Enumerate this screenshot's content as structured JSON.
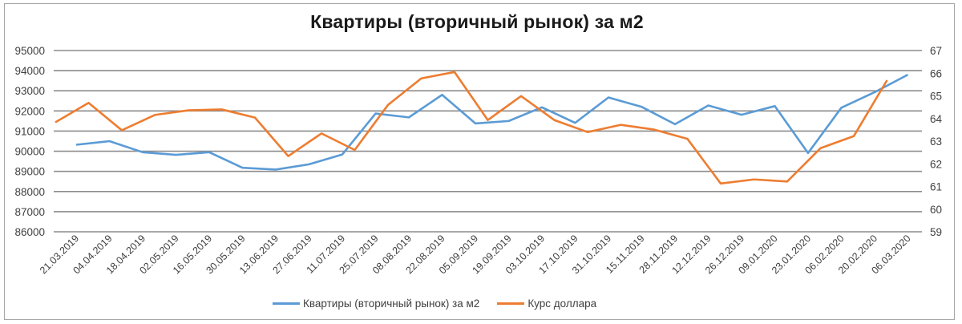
{
  "chart_data": {
    "type": "line",
    "title": "Квартиры (вторичный рынок) за м2",
    "xlabel": "",
    "ylabel": "",
    "categories": [
      "21.03.2019",
      "04.04.2019",
      "18.04.2019",
      "02.05.2019",
      "16.05.2019",
      "30.05.2019",
      "13.06.2019",
      "27.06.2019",
      "11.07.2019",
      "25.07.2019",
      "08.08.2019",
      "22.08.2019",
      "05.09.2019",
      "19.09.2019",
      "03.10.2019",
      "17.10.2019",
      "31.10.2019",
      "15.11.2019",
      "28.11.2019",
      "12.12.2019",
      "26.12.2019",
      "09.01.2020",
      "23.01.2020",
      "06.02.2020",
      "20.02.2020",
      "06.03.2020"
    ],
    "series": [
      {
        "name": "Квартиры (вторичный рынок) за м2",
        "axis": "left",
        "color": "#5b9bd5",
        "values": [
          90320,
          90500,
          89950,
          89820,
          89950,
          89180,
          89090,
          89350,
          89840,
          91870,
          91680,
          92800,
          91380,
          91500,
          92180,
          91410,
          92670,
          92200,
          91340,
          92270,
          91810,
          92240,
          89910,
          92160,
          92930,
          93800
        ]
      },
      {
        "name": "Курс доллара",
        "axis": "right",
        "color": "#ed7d31",
        "values": [
          63.83,
          64.69,
          63.48,
          64.16,
          64.36,
          64.4,
          64.04,
          62.34,
          63.34,
          62.61,
          64.6,
          65.77,
          66.05,
          63.93,
          64.99,
          63.93,
          63.4,
          63.72,
          63.51,
          63.1,
          61.13,
          61.31,
          61.22,
          62.69,
          63.22,
          65.69
        ]
      }
    ],
    "ylim": [
      86000,
      95000
    ],
    "y2lim": [
      59,
      67
    ],
    "yticks": [
      "95000",
      "94000",
      "93000",
      "92000",
      "91000",
      "90000",
      "89000",
      "88000",
      "87000",
      "86000"
    ],
    "y2ticks": [
      "67",
      "66",
      "65",
      "64",
      "63",
      "62",
      "61",
      "60",
      "59"
    ],
    "grid": true,
    "legend_position": "bottom"
  },
  "legend": {
    "items": [
      {
        "label": "Квартиры (вторичный рынок) за м2",
        "color": "#5b9bd5"
      },
      {
        "label": "Курс доллара",
        "color": "#ed7d31"
      }
    ]
  }
}
